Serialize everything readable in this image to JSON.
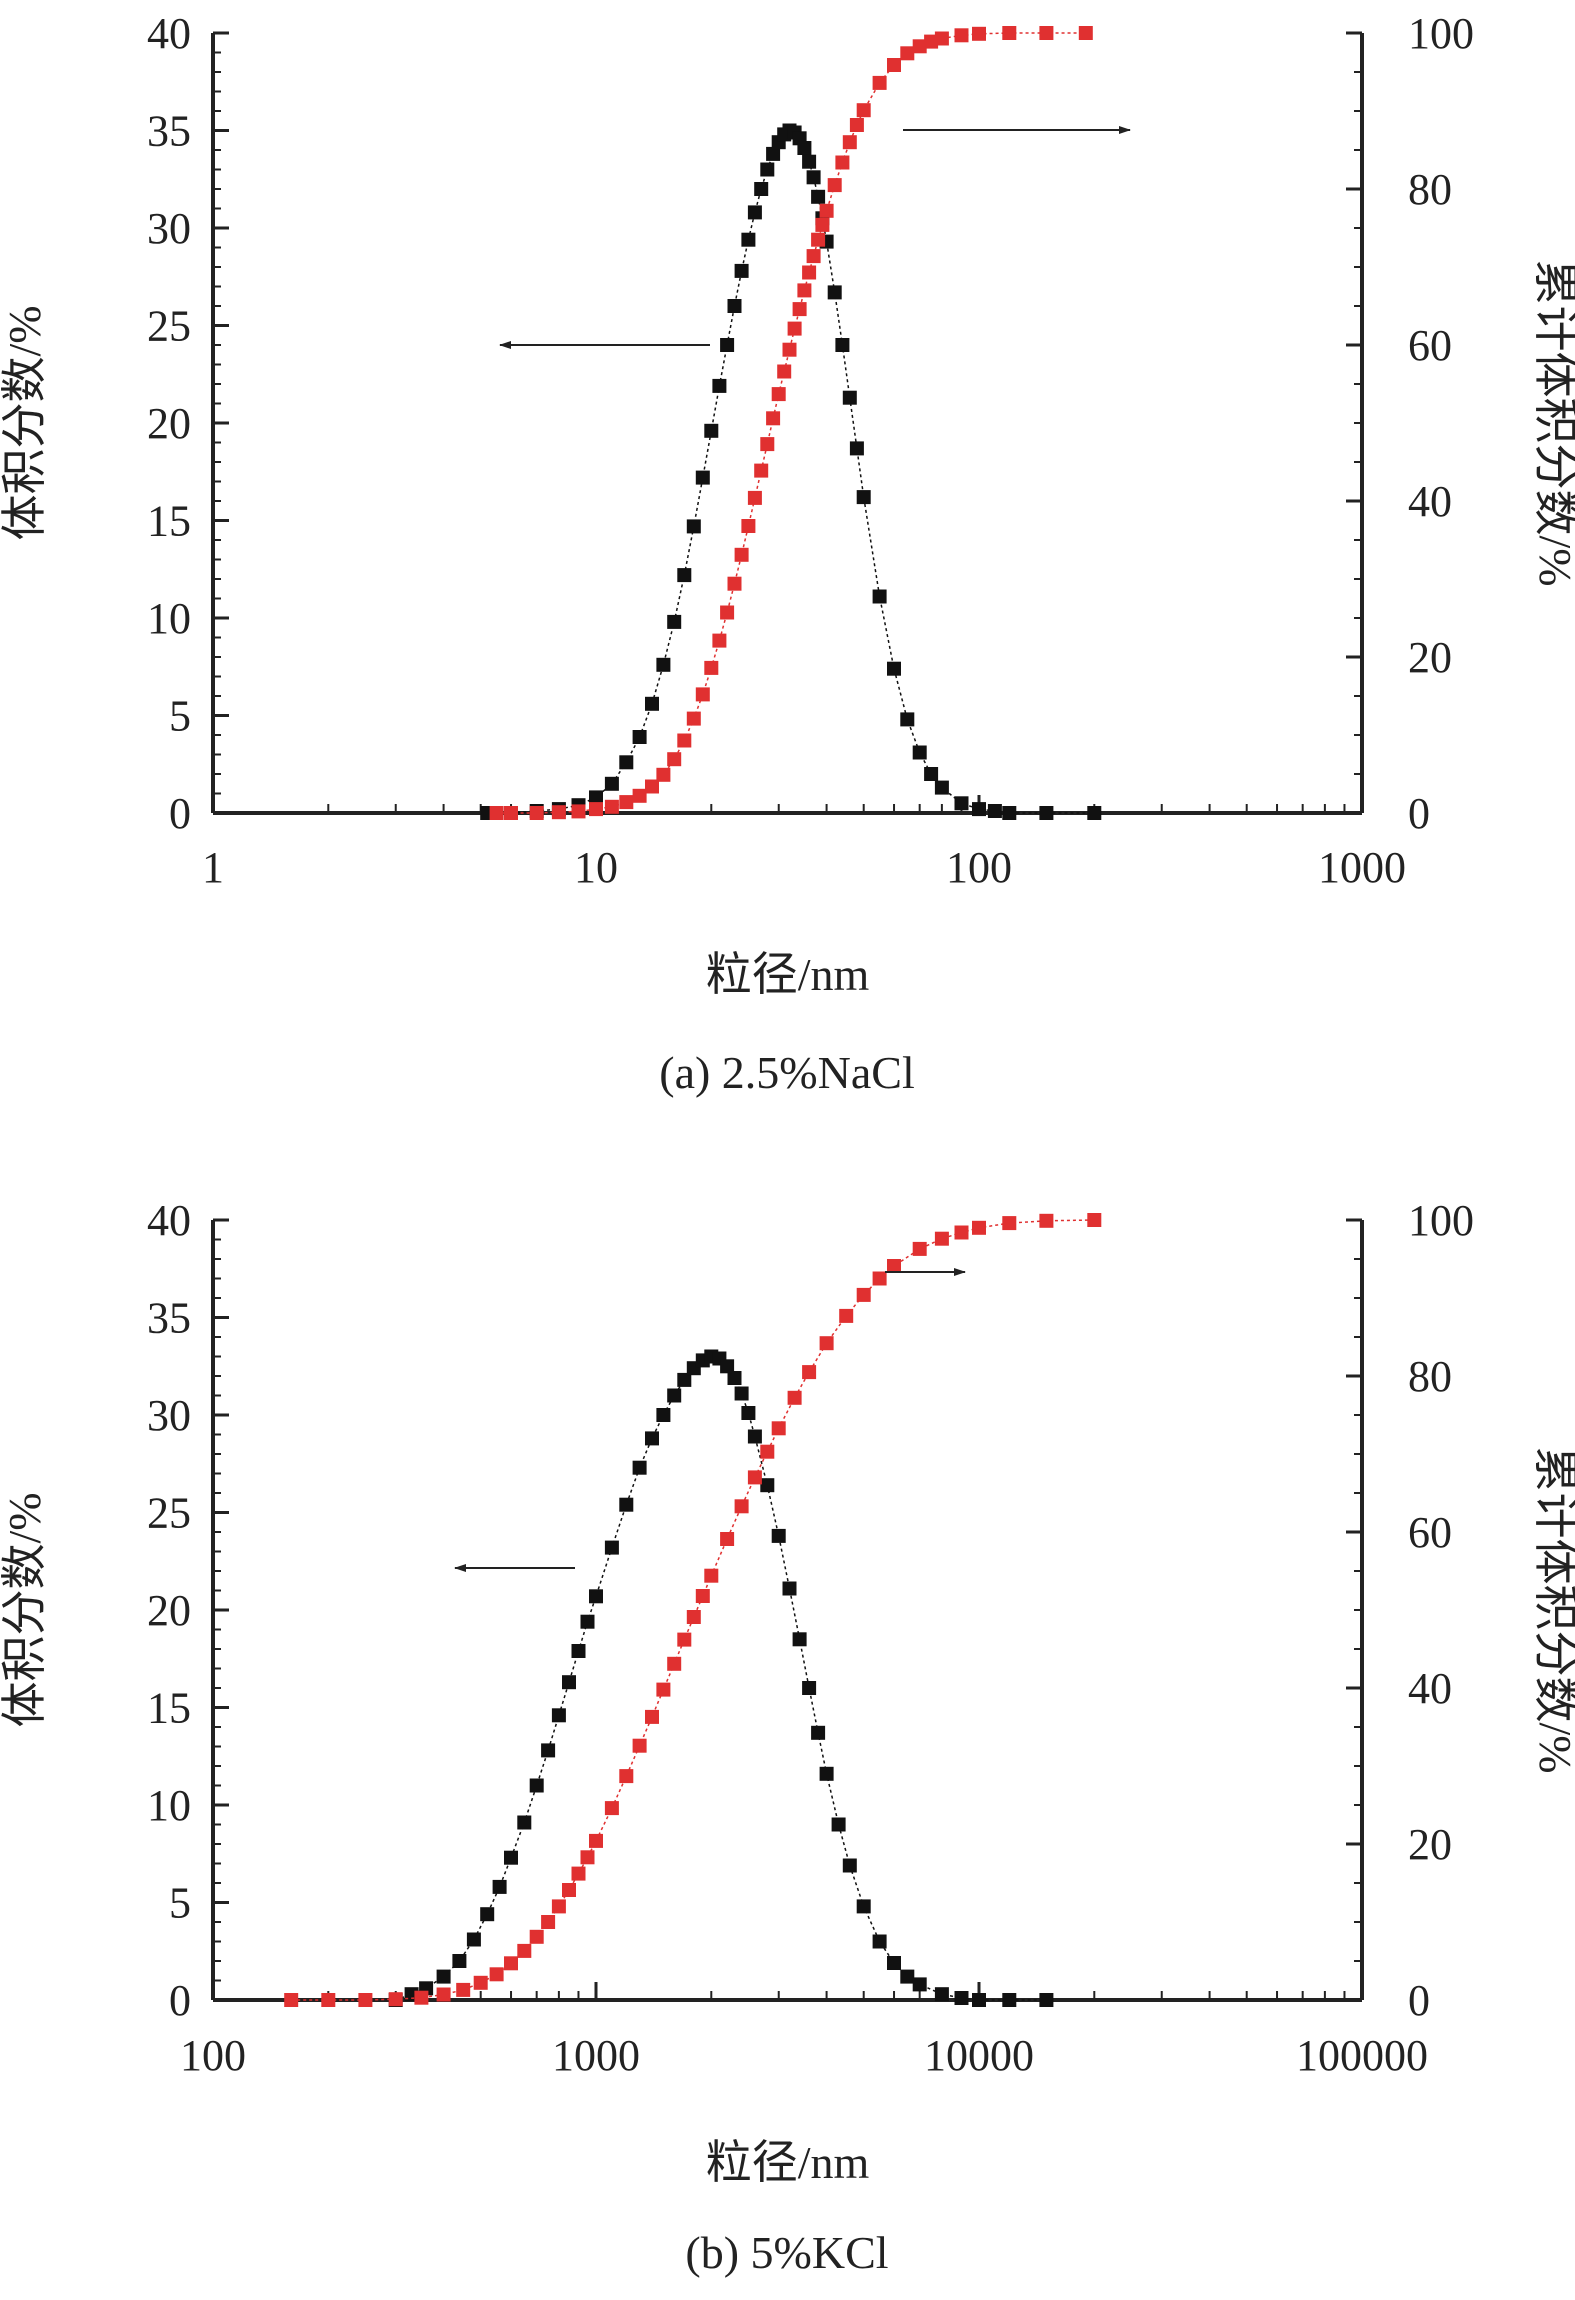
{
  "colors": {
    "volume": "#111111",
    "cumulative": "#e03030",
    "axis": "#222222"
  },
  "charts": [
    {
      "caption": "(a) 2.5%NaCl",
      "chart_data": {
        "type": "scatter",
        "title": "",
        "xlabel": "粒径/nm",
        "ylabel": "体积分数/%",
        "y2label": "累计体积分数/%",
        "xscale": "log",
        "xlim": [
          1,
          1000
        ],
        "ylim": [
          0,
          40
        ],
        "y2lim": [
          0,
          100
        ],
        "xticks": [
          "1",
          "10",
          "100",
          "1000"
        ],
        "yticks": [
          "0",
          "5",
          "10",
          "15",
          "20",
          "25",
          "30",
          "35",
          "40"
        ],
        "y2ticks": [
          "0",
          "20",
          "40",
          "60",
          "80",
          "100"
        ],
        "annotations": [
          {
            "type": "arrow",
            "direction": "left",
            "series": "体积分数"
          },
          {
            "type": "arrow",
            "direction": "right",
            "series": "累计体积分数"
          }
        ],
        "series": [
          {
            "axis": "left",
            "color": "#111111",
            "x": [
              5.2,
              6,
              7,
              8,
              9,
              10,
              11,
              12,
              13,
              14,
              15,
              16,
              17,
              18,
              19,
              20,
              21,
              22,
              23,
              24,
              25,
              26,
              27,
              28,
              29,
              30,
              31,
              32,
              33,
              34,
              35,
              36,
              37,
              38,
              39,
              40,
              42,
              44,
              46,
              48,
              50,
              55,
              60,
              65,
              70,
              75,
              80,
              90,
              100,
              110,
              120,
              150,
              200
            ],
            "values": [
              0,
              0,
              0.1,
              0.2,
              0.4,
              0.8,
              1.5,
              2.6,
              3.9,
              5.6,
              7.6,
              9.8,
              12.2,
              14.7,
              17.2,
              19.6,
              21.9,
              24.0,
              26.0,
              27.8,
              29.4,
              30.8,
              32.0,
              33.0,
              33.8,
              34.4,
              34.8,
              35.0,
              34.9,
              34.6,
              34.1,
              33.4,
              32.6,
              31.6,
              30.5,
              29.3,
              26.7,
              24.0,
              21.3,
              18.7,
              16.2,
              11.1,
              7.4,
              4.8,
              3.1,
              2.0,
              1.3,
              0.5,
              0.2,
              0.1,
              0,
              0,
              0
            ]
          },
          {
            "axis": "right",
            "color": "#e03030",
            "x": [
              5.5,
              6,
              7,
              8,
              9,
              10,
              11,
              12,
              13,
              14,
              15,
              16,
              17,
              18,
              19,
              20,
              21,
              22,
              23,
              24,
              25,
              26,
              27,
              28,
              29,
              30,
              31,
              32,
              33,
              34,
              35,
              36,
              37,
              38,
              39,
              40,
              42,
              44,
              46,
              48,
              50,
              55,
              60,
              65,
              70,
              75,
              80,
              90,
              100,
              120,
              150,
              190
            ],
            "values": [
              0,
              0,
              0,
              0.1,
              0.2,
              0.5,
              0.8,
              1.4,
              2.2,
              3.4,
              4.9,
              6.9,
              9.3,
              12.1,
              15.2,
              18.6,
              22.1,
              25.7,
              29.4,
              33.1,
              36.8,
              40.4,
              43.9,
              47.3,
              50.6,
              53.7,
              56.6,
              59.4,
              62.1,
              64.6,
              67.0,
              69.3,
              71.4,
              73.5,
              75.4,
              77.2,
              80.5,
              83.4,
              86.0,
              88.2,
              90.1,
              93.6,
              95.9,
              97.4,
              98.3,
              98.9,
              99.3,
              99.7,
              99.9,
              100,
              100,
              100
            ]
          }
        ]
      }
    },
    {
      "caption": "(b) 5%KCl",
      "chart_data": {
        "type": "scatter",
        "title": "",
        "xlabel": "粒径/nm",
        "ylabel": "体积分数/%",
        "y2label": "累计体积分数/%",
        "xscale": "log",
        "xlim": [
          100,
          100000
        ],
        "ylim": [
          0,
          40
        ],
        "y2lim": [
          0,
          100
        ],
        "xticks": [
          "100",
          "1000",
          "10000",
          "100000"
        ],
        "yticks": [
          "0",
          "5",
          "10",
          "15",
          "20",
          "25",
          "30",
          "35",
          "40"
        ],
        "y2ticks": [
          "0",
          "20",
          "40",
          "60",
          "80",
          "100"
        ],
        "annotations": [
          {
            "type": "arrow",
            "direction": "left",
            "series": "体积分数"
          },
          {
            "type": "arrow",
            "direction": "right",
            "series": "累计体积分数"
          }
        ],
        "series": [
          {
            "axis": "left",
            "color": "#111111",
            "x": [
              300,
              330,
              360,
              400,
              440,
              480,
              520,
              560,
              600,
              650,
              700,
              750,
              800,
              850,
              900,
              950,
              1000,
              1100,
              1200,
              1300,
              1400,
              1500,
              1600,
              1700,
              1800,
              1900,
              2000,
              2100,
              2200,
              2300,
              2400,
              2500,
              2600,
              2800,
              3000,
              3200,
              3400,
              3600,
              3800,
              4000,
              4300,
              4600,
              5000,
              5500,
              6000,
              6500,
              7000,
              8000,
              9000,
              10000,
              12000,
              15000
            ],
            "values": [
              0,
              0.3,
              0.6,
              1.2,
              2.0,
              3.1,
              4.4,
              5.8,
              7.3,
              9.1,
              11.0,
              12.8,
              14.6,
              16.3,
              17.9,
              19.4,
              20.7,
              23.2,
              25.4,
              27.3,
              28.8,
              30.0,
              31.0,
              31.8,
              32.4,
              32.8,
              33.0,
              32.9,
              32.5,
              31.9,
              31.1,
              30.1,
              28.9,
              26.4,
              23.8,
              21.1,
              18.5,
              16.0,
              13.7,
              11.6,
              9.0,
              6.9,
              4.8,
              3.0,
              1.9,
              1.2,
              0.8,
              0.3,
              0.1,
              0,
              0,
              0
            ]
          },
          {
            "axis": "right",
            "color": "#e03030",
            "x": [
              160,
              200,
              250,
              300,
              350,
              400,
              450,
              500,
              550,
              600,
              650,
              700,
              750,
              800,
              850,
              900,
              950,
              1000,
              1100,
              1200,
              1300,
              1400,
              1500,
              1600,
              1700,
              1800,
              1900,
              2000,
              2200,
              2400,
              2600,
              2800,
              3000,
              3300,
              3600,
              4000,
              4500,
              5000,
              5500,
              6000,
              7000,
              8000,
              9000,
              10000,
              12000,
              15000,
              20000
            ],
            "values": [
              0,
              0,
              0,
              0.1,
              0.3,
              0.7,
              1.3,
              2.2,
              3.3,
              4.7,
              6.3,
              8.1,
              10.0,
              12.0,
              14.1,
              16.2,
              18.3,
              20.4,
              24.6,
              28.7,
              32.6,
              36.3,
              39.8,
              43.1,
              46.2,
              49.1,
              51.8,
              54.4,
              59.1,
              63.3,
              67.0,
              70.3,
              73.3,
              77.2,
              80.5,
              84.2,
              87.7,
              90.4,
              92.5,
              94.1,
              96.3,
              97.6,
              98.4,
              99.0,
              99.6,
              99.9,
              100
            ]
          }
        ]
      }
    }
  ]
}
